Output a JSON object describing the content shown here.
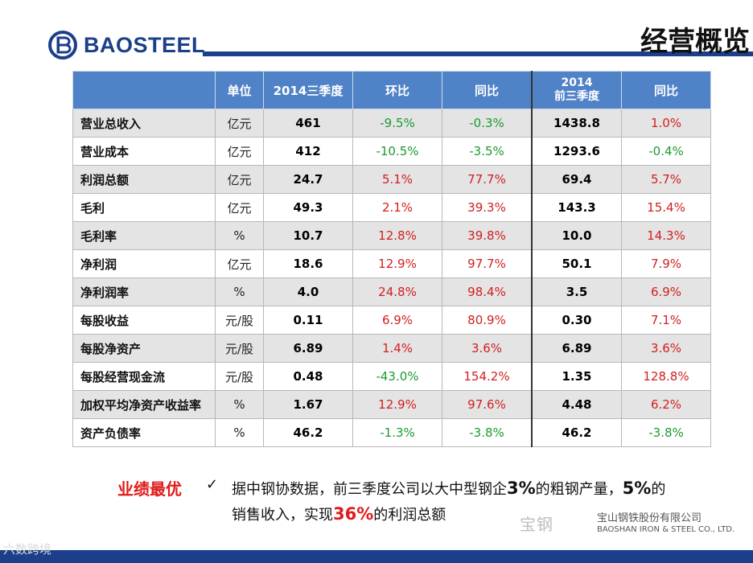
{
  "header": {
    "brand": "BAOSTEEL",
    "title": "经营概览",
    "colors": {
      "brand_blue": "#1b3f8b",
      "header_fill": "#5082c8",
      "positive": "#d12020",
      "negative": "#1c9a2e",
      "highlight": "#e11b1b"
    }
  },
  "table": {
    "headers": [
      "",
      "单位",
      "2014三季度",
      "环比",
      "同比",
      "2014\n前三季度",
      "同比"
    ],
    "rows": [
      {
        "name": "营业总收入",
        "unit": "亿元",
        "q3": "461",
        "qoq": "-9.5%",
        "yoy": "-0.3%",
        "ytd": "1438.8",
        "ytd_yoy": "1.0%"
      },
      {
        "name": "营业成本",
        "unit": "亿元",
        "q3": "412",
        "qoq": "-10.5%",
        "yoy": "-3.5%",
        "ytd": "1293.6",
        "ytd_yoy": "-0.4%"
      },
      {
        "name": "利润总额",
        "unit": "亿元",
        "q3": "24.7",
        "qoq": "5.1%",
        "yoy": "77.7%",
        "ytd": "69.4",
        "ytd_yoy": "5.7%"
      },
      {
        "name": "毛利",
        "unit": "亿元",
        "q3": "49.3",
        "qoq": "2.1%",
        "yoy": "39.3%",
        "ytd": "143.3",
        "ytd_yoy": "15.4%"
      },
      {
        "name": "毛利率",
        "unit": "%",
        "q3": "10.7",
        "qoq": "12.8%",
        "yoy": "39.8%",
        "ytd": "10.0",
        "ytd_yoy": "14.3%"
      },
      {
        "name": "净利润",
        "unit": "亿元",
        "q3": "18.6",
        "qoq": "12.9%",
        "yoy": "97.7%",
        "ytd": "50.1",
        "ytd_yoy": "7.9%"
      },
      {
        "name": "净利润率",
        "unit": "%",
        "q3": "4.0",
        "qoq": "24.8%",
        "yoy": "98.4%",
        "ytd": "3.5",
        "ytd_yoy": "6.9%"
      },
      {
        "name": "每股收益",
        "unit": "元/股",
        "q3": "0.11",
        "qoq": "6.9%",
        "yoy": "80.9%",
        "ytd": "0.30",
        "ytd_yoy": "7.1%"
      },
      {
        "name": "每股净资产",
        "unit": "元/股",
        "q3": "6.89",
        "qoq": "1.4%",
        "yoy": "3.6%",
        "ytd": "6.89",
        "ytd_yoy": "3.6%"
      },
      {
        "name": "每股经营现金流",
        "unit": "元/股",
        "q3": "0.48",
        "qoq": "-43.0%",
        "yoy": "154.2%",
        "ytd": "1.35",
        "ytd_yoy": "128.8%"
      },
      {
        "name": "加权平均净资产收益率",
        "unit": "%",
        "q3": "1.67",
        "qoq": "12.9%",
        "yoy": "97.6%",
        "ytd": "4.48",
        "ytd_yoy": "6.2%"
      },
      {
        "name": "资产负债率",
        "unit": "%",
        "q3": "46.2",
        "qoq": "-1.3%",
        "yoy": "-3.8%",
        "ytd": "46.2",
        "ytd_yoy": "-3.8%"
      }
    ]
  },
  "note": {
    "label": "业绩最优",
    "check": "✓",
    "p1": "据中钢协数据，前三季度公司以大中型钢企",
    "h1": "3%",
    "p2": "的粗钢产量，",
    "h2": "5%",
    "p3": "的销售收入，实现",
    "h3": "36%",
    "p4": "的利润总额"
  },
  "watermarks": {
    "bottom_left": "六数跨境",
    "right": "宝钢",
    "company_cn": "宝山钢铁股份有限公司",
    "company_en": "BAOSHAN IRON & STEEL CO., LTD."
  }
}
